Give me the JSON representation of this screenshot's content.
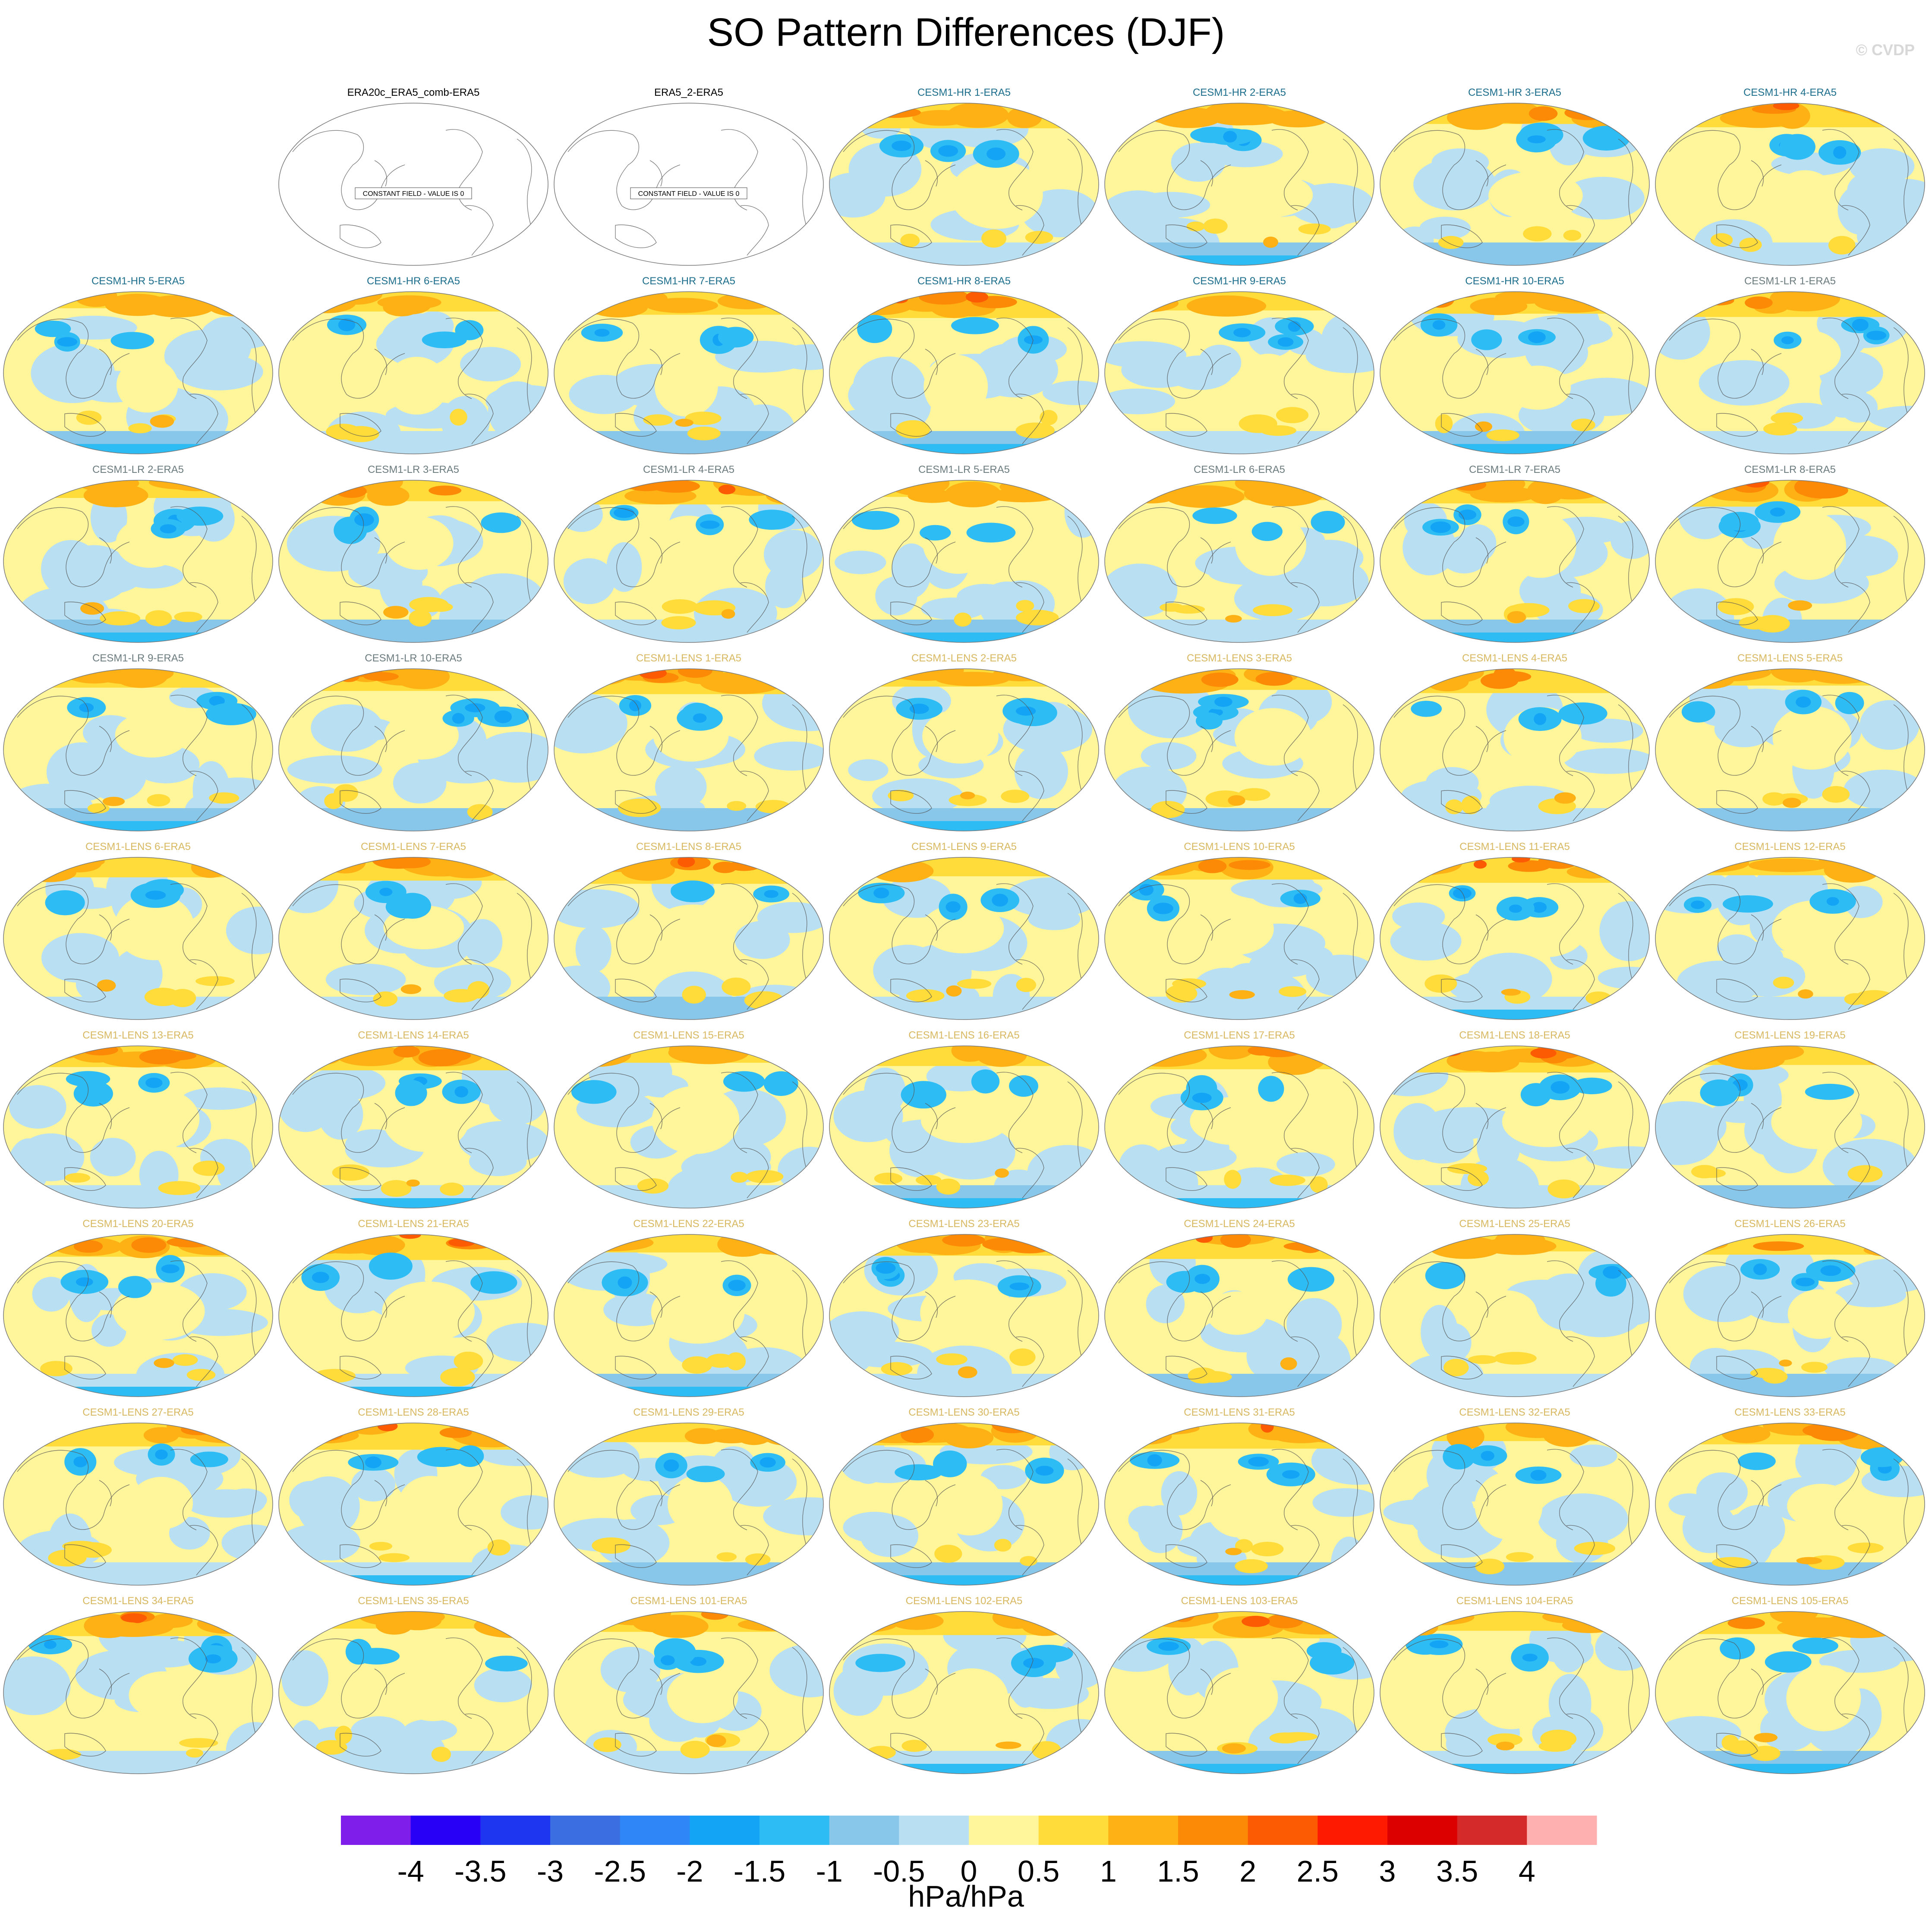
{
  "title": "SO Pattern Differences (DJF)",
  "credit": "© CVDP",
  "constant_field_note": "CONSTANT FIELD - VALUE IS 0",
  "colors": {
    "obs_title": "#000000",
    "hr_title": "#1c6e8c",
    "lr_title": "#6b7b7e",
    "lens_title": "#d8b860"
  },
  "palette": [
    "#7f1dea",
    "#2800f5",
    "#1f36f0",
    "#3b6ee0",
    "#2e86f7",
    "#14a4f6",
    "#2dbcf4",
    "#88c6ea",
    "#b8dff2",
    "#fff59a",
    "#ffdc3a",
    "#fdb114",
    "#fd8a06",
    "#fd5a04",
    "#fd1a00",
    "#dc0000",
    "#d42a2a",
    "#feb0b0"
  ],
  "colorbar": {
    "labels": [
      "-4",
      "-3.5",
      "-3",
      "-2.5",
      "-2",
      "-1.5",
      "-1",
      "-0.5",
      "0",
      "0.5",
      "1",
      "1.5",
      "2",
      "2.5",
      "3",
      "3.5",
      "4"
    ],
    "units": "hPa/hPa"
  },
  "panels": [
    {
      "row": 0,
      "col": 1,
      "title": "ERA20c_ERA5_comb-ERA5",
      "group": "obs",
      "constant": true
    },
    {
      "row": 0,
      "col": 2,
      "title": "ERA5_2-ERA5",
      "group": "obs",
      "constant": true
    },
    {
      "row": 0,
      "col": 3,
      "title": "CESM1-HR 1-ERA5",
      "group": "hr"
    },
    {
      "row": 0,
      "col": 4,
      "title": "CESM1-HR 2-ERA5",
      "group": "hr"
    },
    {
      "row": 0,
      "col": 5,
      "title": "CESM1-HR 3-ERA5",
      "group": "hr"
    },
    {
      "row": 0,
      "col": 6,
      "title": "CESM1-HR 4-ERA5",
      "group": "hr"
    },
    {
      "row": 1,
      "col": 0,
      "title": "CESM1-HR 5-ERA5",
      "group": "hr"
    },
    {
      "row": 1,
      "col": 1,
      "title": "CESM1-HR 6-ERA5",
      "group": "hr"
    },
    {
      "row": 1,
      "col": 2,
      "title": "CESM1-HR 7-ERA5",
      "group": "hr"
    },
    {
      "row": 1,
      "col": 3,
      "title": "CESM1-HR 8-ERA5",
      "group": "hr"
    },
    {
      "row": 1,
      "col": 4,
      "title": "CESM1-HR 9-ERA5",
      "group": "hr"
    },
    {
      "row": 1,
      "col": 5,
      "title": "CESM1-HR 10-ERA5",
      "group": "hr"
    },
    {
      "row": 1,
      "col": 6,
      "title": "CESM1-LR 1-ERA5",
      "group": "lr"
    },
    {
      "row": 2,
      "col": 0,
      "title": "CESM1-LR 2-ERA5",
      "group": "lr"
    },
    {
      "row": 2,
      "col": 1,
      "title": "CESM1-LR 3-ERA5",
      "group": "lr"
    },
    {
      "row": 2,
      "col": 2,
      "title": "CESM1-LR 4-ERA5",
      "group": "lr"
    },
    {
      "row": 2,
      "col": 3,
      "title": "CESM1-LR 5-ERA5",
      "group": "lr"
    },
    {
      "row": 2,
      "col": 4,
      "title": "CESM1-LR 6-ERA5",
      "group": "lr"
    },
    {
      "row": 2,
      "col": 5,
      "title": "CESM1-LR 7-ERA5",
      "group": "lr"
    },
    {
      "row": 2,
      "col": 6,
      "title": "CESM1-LR 8-ERA5",
      "group": "lr"
    },
    {
      "row": 3,
      "col": 0,
      "title": "CESM1-LR 9-ERA5",
      "group": "lr"
    },
    {
      "row": 3,
      "col": 1,
      "title": "CESM1-LR 10-ERA5",
      "group": "lr"
    },
    {
      "row": 3,
      "col": 2,
      "title": "CESM1-LENS 1-ERA5",
      "group": "lens"
    },
    {
      "row": 3,
      "col": 3,
      "title": "CESM1-LENS 2-ERA5",
      "group": "lens"
    },
    {
      "row": 3,
      "col": 4,
      "title": "CESM1-LENS 3-ERA5",
      "group": "lens"
    },
    {
      "row": 3,
      "col": 5,
      "title": "CESM1-LENS 4-ERA5",
      "group": "lens"
    },
    {
      "row": 3,
      "col": 6,
      "title": "CESM1-LENS 5-ERA5",
      "group": "lens"
    },
    {
      "row": 4,
      "col": 0,
      "title": "CESM1-LENS 6-ERA5",
      "group": "lens"
    },
    {
      "row": 4,
      "col": 1,
      "title": "CESM1-LENS 7-ERA5",
      "group": "lens"
    },
    {
      "row": 4,
      "col": 2,
      "title": "CESM1-LENS 8-ERA5",
      "group": "lens"
    },
    {
      "row": 4,
      "col": 3,
      "title": "CESM1-LENS 9-ERA5",
      "group": "lens"
    },
    {
      "row": 4,
      "col": 4,
      "title": "CESM1-LENS 10-ERA5",
      "group": "lens"
    },
    {
      "row": 4,
      "col": 5,
      "title": "CESM1-LENS 11-ERA5",
      "group": "lens"
    },
    {
      "row": 4,
      "col": 6,
      "title": "CESM1-LENS 12-ERA5",
      "group": "lens"
    },
    {
      "row": 5,
      "col": 0,
      "title": "CESM1-LENS 13-ERA5",
      "group": "lens"
    },
    {
      "row": 5,
      "col": 1,
      "title": "CESM1-LENS 14-ERA5",
      "group": "lens"
    },
    {
      "row": 5,
      "col": 2,
      "title": "CESM1-LENS 15-ERA5",
      "group": "lens"
    },
    {
      "row": 5,
      "col": 3,
      "title": "CESM1-LENS 16-ERA5",
      "group": "lens"
    },
    {
      "row": 5,
      "col": 4,
      "title": "CESM1-LENS 17-ERA5",
      "group": "lens"
    },
    {
      "row": 5,
      "col": 5,
      "title": "CESM1-LENS 18-ERA5",
      "group": "lens"
    },
    {
      "row": 5,
      "col": 6,
      "title": "CESM1-LENS 19-ERA5",
      "group": "lens"
    },
    {
      "row": 6,
      "col": 0,
      "title": "CESM1-LENS 20-ERA5",
      "group": "lens"
    },
    {
      "row": 6,
      "col": 1,
      "title": "CESM1-LENS 21-ERA5",
      "group": "lens"
    },
    {
      "row": 6,
      "col": 2,
      "title": "CESM1-LENS 22-ERA5",
      "group": "lens"
    },
    {
      "row": 6,
      "col": 3,
      "title": "CESM1-LENS 23-ERA5",
      "group": "lens"
    },
    {
      "row": 6,
      "col": 4,
      "title": "CESM1-LENS 24-ERA5",
      "group": "lens"
    },
    {
      "row": 6,
      "col": 5,
      "title": "CESM1-LENS 25-ERA5",
      "group": "lens"
    },
    {
      "row": 6,
      "col": 6,
      "title": "CESM1-LENS 26-ERA5",
      "group": "lens"
    },
    {
      "row": 7,
      "col": 0,
      "title": "CESM1-LENS 27-ERA5",
      "group": "lens"
    },
    {
      "row": 7,
      "col": 1,
      "title": "CESM1-LENS 28-ERA5",
      "group": "lens"
    },
    {
      "row": 7,
      "col": 2,
      "title": "CESM1-LENS 29-ERA5",
      "group": "lens"
    },
    {
      "row": 7,
      "col": 3,
      "title": "CESM1-LENS 30-ERA5",
      "group": "lens"
    },
    {
      "row": 7,
      "col": 4,
      "title": "CESM1-LENS 31-ERA5",
      "group": "lens"
    },
    {
      "row": 7,
      "col": 5,
      "title": "CESM1-LENS 32-ERA5",
      "group": "lens"
    },
    {
      "row": 7,
      "col": 6,
      "title": "CESM1-LENS 33-ERA5",
      "group": "lens"
    },
    {
      "row": 8,
      "col": 0,
      "title": "CESM1-LENS 34-ERA5",
      "group": "lens"
    },
    {
      "row": 8,
      "col": 1,
      "title": "CESM1-LENS 35-ERA5",
      "group": "lens"
    },
    {
      "row": 8,
      "col": 2,
      "title": "CESM1-LENS 101-ERA5",
      "group": "lens"
    },
    {
      "row": 8,
      "col": 3,
      "title": "CESM1-LENS 102-ERA5",
      "group": "lens"
    },
    {
      "row": 8,
      "col": 4,
      "title": "CESM1-LENS 103-ERA5",
      "group": "lens"
    },
    {
      "row": 8,
      "col": 5,
      "title": "CESM1-LENS 104-ERA5",
      "group": "lens"
    },
    {
      "row": 8,
      "col": 6,
      "title": "CESM1-LENS 105-ERA5",
      "group": "lens"
    }
  ]
}
